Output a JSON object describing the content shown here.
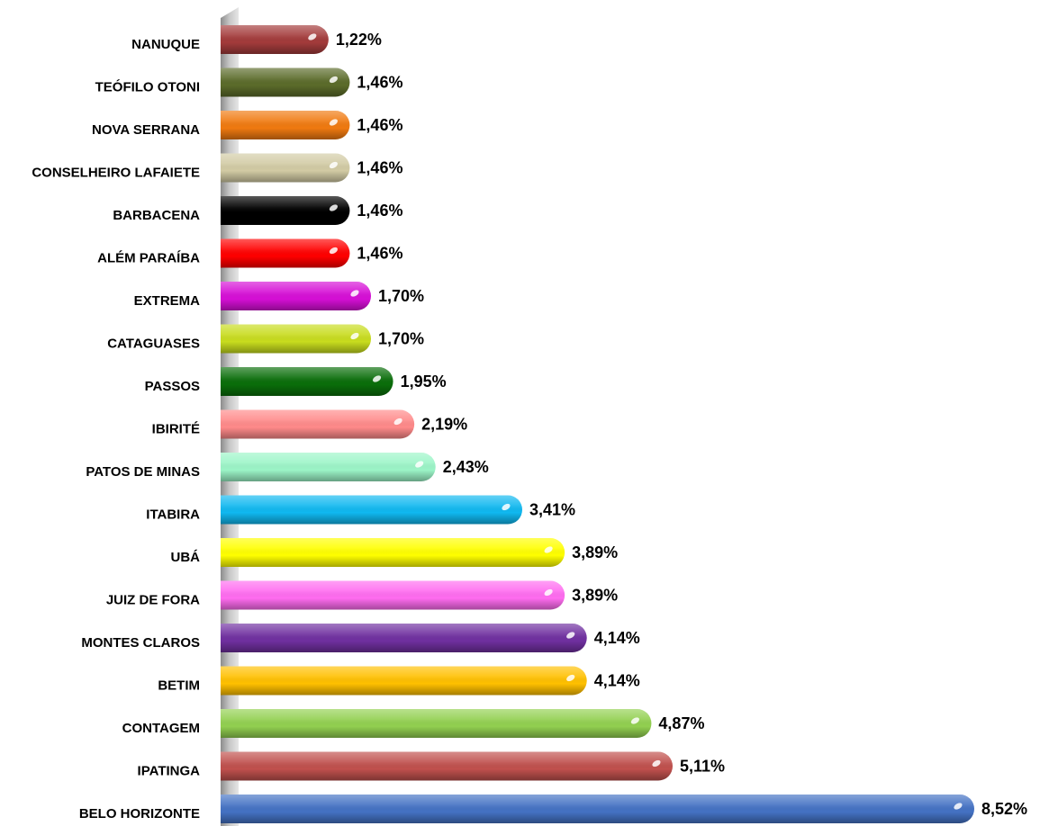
{
  "chart_data": {
    "type": "bar",
    "orientation": "horizontal",
    "categories": [
      "NANUQUE",
      "TEÓFILO OTONI",
      "NOVA SERRANA",
      "CONSELHEIRO LAFAIETE",
      "BARBACENA",
      "ALÉM PARAÍBA",
      "EXTREMA",
      "CATAGUASES",
      "PASSOS",
      "IBIRITÉ",
      "PATOS DE MINAS",
      "ITABIRA",
      "UBÁ",
      "JUIZ DE FORA",
      "MONTES CLAROS",
      "BETIM",
      "CONTAGEM",
      "IPATINGA",
      "BELO HORIZONTE"
    ],
    "values": [
      1.22,
      1.46,
      1.46,
      1.46,
      1.46,
      1.46,
      1.7,
      1.7,
      1.95,
      2.19,
      2.43,
      3.41,
      3.89,
      3.89,
      4.14,
      4.14,
      4.87,
      5.11,
      8.52
    ],
    "value_labels": [
      "1,22%",
      "1,46%",
      "1,46%",
      "1,46%",
      "1,46%",
      "1,46%",
      "1,70%",
      "1,70%",
      "1,95%",
      "2,19%",
      "2,43%",
      "3,41%",
      "3,89%",
      "3,89%",
      "4,14%",
      "4,14%",
      "4,87%",
      "5,11%",
      "8,52%"
    ],
    "colors": [
      "#a33b3b",
      "#5b6b2a",
      "#f07a10",
      "#d2cba4",
      "#000000",
      "#ff0000",
      "#d60fd6",
      "#c8dc1e",
      "#0a6e0a",
      "#ff8a8a",
      "#9cf5c8",
      "#10b8f0",
      "#ffff00",
      "#ff6cf0",
      "#7030a0",
      "#ffc000",
      "#92d050",
      "#c0504d",
      "#4472c4"
    ]
  }
}
